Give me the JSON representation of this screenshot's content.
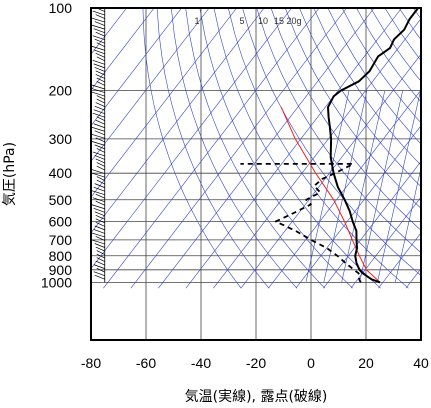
{
  "chart_data": {
    "type": "skew-t log-p",
    "xlabel": "気温(実線), 露点(破線)",
    "ylabel": "気圧(hPa)",
    "x_ticks": [
      -80,
      -60,
      -40,
      -20,
      0,
      20,
      40
    ],
    "y_ticks": [
      100,
      200,
      300,
      400,
      500,
      600,
      700,
      800,
      900,
      1000
    ],
    "xlim": [
      -80,
      40
    ],
    "ylim": [
      1050,
      100
    ],
    "grid": true,
    "mixing_ratio_labels": [
      "1",
      "5",
      "10",
      "15",
      "20g"
    ],
    "temperature": {
      "color": "#000000",
      "style": "solid",
      "points": [
        {
          "p": 1000,
          "t": 9
        },
        {
          "p": 975,
          "t": 5
        },
        {
          "p": 950,
          "t": 2.5
        },
        {
          "p": 925,
          "t": 0
        },
        {
          "p": 900,
          "t": -2
        },
        {
          "p": 850,
          "t": -5
        },
        {
          "p": 800,
          "t": -7.5
        },
        {
          "p": 750,
          "t": -9
        },
        {
          "p": 700,
          "t": -11.5
        },
        {
          "p": 650,
          "t": -14
        },
        {
          "p": 600,
          "t": -18
        },
        {
          "p": 550,
          "t": -22
        },
        {
          "p": 500,
          "t": -27
        },
        {
          "p": 450,
          "t": -33
        },
        {
          "p": 400,
          "t": -38.5
        },
        {
          "p": 350,
          "t": -44
        },
        {
          "p": 300,
          "t": -49
        },
        {
          "p": 270,
          "t": -53
        },
        {
          "p": 250,
          "t": -56
        },
        {
          "p": 230,
          "t": -59
        },
        {
          "p": 210,
          "t": -60
        },
        {
          "p": 200,
          "t": -59
        },
        {
          "p": 185,
          "t": -55
        },
        {
          "p": 170,
          "t": -54
        },
        {
          "p": 150,
          "t": -55
        },
        {
          "p": 140,
          "t": -53
        },
        {
          "p": 130,
          "t": -54
        },
        {
          "p": 120,
          "t": -53
        },
        {
          "p": 110,
          "t": -54
        },
        {
          "p": 100,
          "t": -54
        }
      ]
    },
    "dewpoint": {
      "color": "#000000",
      "style": "dashed",
      "points": [
        {
          "p": 1000,
          "t": 2
        },
        {
          "p": 975,
          "t": 0.5
        },
        {
          "p": 950,
          "t": 0
        },
        {
          "p": 925,
          "t": -1.5
        },
        {
          "p": 900,
          "t": -4
        },
        {
          "p": 850,
          "t": -9
        },
        {
          "p": 800,
          "t": -14
        },
        {
          "p": 750,
          "t": -20
        },
        {
          "p": 700,
          "t": -28
        },
        {
          "p": 650,
          "t": -36
        },
        {
          "p": 600,
          "t": -46
        },
        {
          "p": 560,
          "t": -42
        },
        {
          "p": 520,
          "t": -38
        },
        {
          "p": 500,
          "t": -41
        },
        {
          "p": 470,
          "t": -38
        },
        {
          "p": 445,
          "t": -42
        },
        {
          "p": 420,
          "t": -41
        },
        {
          "p": 400,
          "t": -38
        },
        {
          "p": 370,
          "t": -34
        },
        {
          "p": 370,
          "t": -75
        }
      ]
    },
    "lifted_parcel": {
      "color": "#ee2222",
      "style": "solid",
      "points": [
        {
          "p": 1000,
          "t": 9
        },
        {
          "p": 900,
          "t": 0.5
        },
        {
          "p": 800,
          "t": -6
        },
        {
          "p": 700,
          "t": -13
        },
        {
          "p": 600,
          "t": -21
        },
        {
          "p": 500,
          "t": -31
        },
        {
          "p": 400,
          "t": -45
        },
        {
          "p": 300,
          "t": -62
        },
        {
          "p": 230,
          "t": -76
        }
      ]
    },
    "wind_barbs_column_x": -75
  }
}
